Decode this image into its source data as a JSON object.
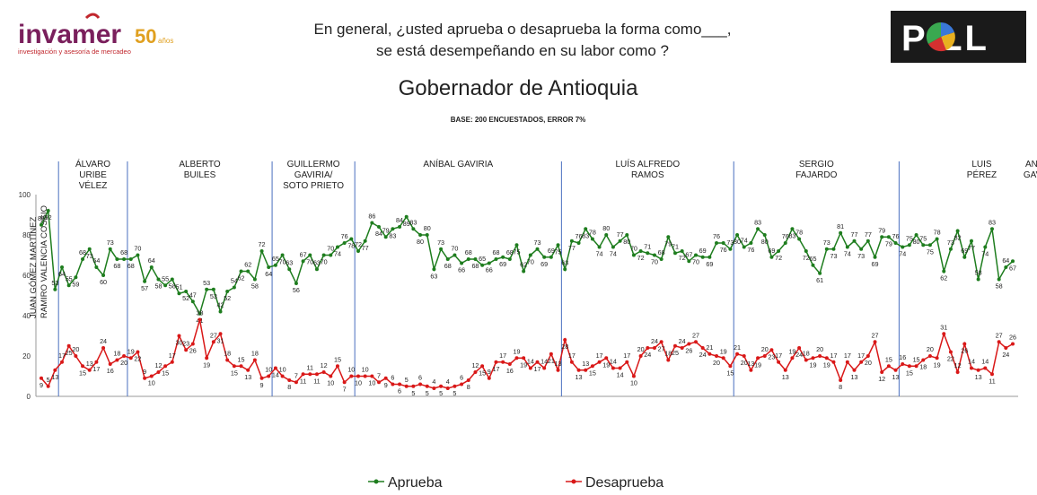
{
  "header": {
    "logo_name": "invamer",
    "logo_years": "50",
    "logo_years_suffix": "años",
    "logo_tagline": "investigación y asesoría de mercadeo",
    "question_line1": "En general, ¿usted aprueba o desaprueba la forma como___,",
    "question_line2": "se está desempeñando en su labor como ?",
    "poll_logo": "P  LL"
  },
  "colors": {
    "aprueba": "#1e7d1e",
    "desaprueba": "#d91818",
    "divider": "#4a6fbf",
    "logo_purple": "#7a1f5c",
    "logo_gold": "#e0a020",
    "logo_red": "#c1272d"
  },
  "chart_data": {
    "type": "line",
    "title": "Gobernador de Antioquia",
    "subtitle": "BASE: 200 ENCUESTADOS, ERROR 7%",
    "ylim": [
      0,
      100
    ],
    "yticks": [
      0,
      20,
      40,
      60,
      80,
      100
    ],
    "grid": false,
    "legend_placement": "bottom-center",
    "periods": [
      {
        "label": [
          "JUAN GÓMEZ MARTÍNEZ"
        ],
        "rotated": true
      },
      {
        "label": [
          "RAMIRO VALENCIA COSSIO"
        ],
        "rotated": true
      },
      {
        "label": [
          "ÁLVARO",
          "URIBE",
          "VÉLEZ"
        ]
      },
      {
        "label": [
          "ALBERTO",
          "BUILES"
        ]
      },
      {
        "label": [
          "GUILLERMO",
          "GAVIRIA/",
          "SOTO PRIETO"
        ]
      },
      {
        "label": [
          "ANÍBAL GAVIRIA"
        ]
      },
      {
        "label": [
          "LUÍS ALFREDO",
          "RAMOS"
        ]
      },
      {
        "label": [
          "SERGIO",
          "FAJARDO"
        ]
      },
      {
        "label": [
          "LUIS",
          "PÉREZ"
        ]
      },
      {
        "label": [
          "ANÍBAL",
          "GAVIRIA"
        ]
      }
    ],
    "divider_after_index": [
      2,
      12,
      33,
      45,
      75,
      100,
      124,
      148
    ],
    "series": [
      {
        "name": "Aprueba",
        "values": [
          85,
          92,
          53,
          64,
          55,
          59,
          68,
          73,
          64,
          60,
          73,
          68,
          68,
          68,
          70,
          57,
          64,
          58,
          55,
          58,
          51,
          52,
          47,
          41,
          53,
          53,
          42,
          52,
          54,
          62,
          62,
          58,
          72,
          64,
          65,
          70,
          63,
          56,
          67,
          70,
          63,
          70,
          70,
          74,
          76,
          78,
          72,
          77,
          86,
          84,
          79,
          83,
          84,
          89,
          83,
          80,
          80,
          63,
          73,
          68,
          70,
          66,
          68,
          68,
          65,
          66,
          68,
          69,
          68,
          75,
          62,
          70,
          73,
          69,
          69,
          75,
          63,
          77,
          76,
          83,
          78,
          74,
          80,
          74,
          77,
          80,
          70,
          72,
          71,
          70,
          68,
          79,
          71,
          72,
          67,
          70,
          69,
          69,
          76,
          76,
          73,
          80,
          74,
          76,
          83,
          80,
          69,
          72,
          76,
          83,
          78,
          72,
          65,
          61,
          73,
          73,
          81,
          74,
          77,
          73,
          77,
          69,
          79,
          79,
          76,
          74,
          75,
          80,
          75,
          75,
          78,
          62,
          73,
          82,
          69,
          77,
          58,
          74,
          83,
          58,
          64,
          67
        ],
        "labels": [
          "85",
          "92",
          "53",
          "64",
          "55",
          "59",
          "68",
          "73",
          "64",
          "60",
          "73",
          "68",
          "68",
          "68",
          "70",
          "57",
          "64",
          "58",
          "55",
          "58",
          "51",
          "52",
          "47",
          "41",
          "53",
          "53",
          "42",
          "52",
          "54",
          "62",
          "62",
          "58",
          "72",
          "64",
          "65",
          "70",
          "63",
          "56",
          "67",
          "70",
          "63",
          "70",
          "70",
          "74",
          "76",
          "78",
          "72",
          "77",
          "86",
          "84",
          "79",
          "83",
          "84",
          "89",
          "83",
          "80",
          "80",
          "63",
          "73",
          "68",
          "70",
          "66",
          "68",
          "68",
          "65",
          "66",
          "68",
          "69",
          "68",
          "75",
          "62",
          "70",
          "73",
          "69",
          "69",
          "75",
          "63",
          "77",
          "76",
          "83",
          "78",
          "74",
          "80",
          "74",
          "77",
          "80",
          "70",
          "72",
          "71",
          "70",
          "68",
          "79",
          "71",
          "72",
          "67",
          "70",
          "69",
          "69",
          "76",
          "76",
          "73",
          "80",
          "74",
          "76",
          "83",
          "80",
          "69",
          "72",
          "76",
          "83",
          "78",
          "72",
          "65",
          "61",
          "73",
          "73",
          "81",
          "74",
          "77",
          "73",
          "77",
          "69",
          "79",
          "79",
          "76",
          "74",
          "75",
          "80",
          "75",
          "75",
          "78",
          "62",
          "73",
          "82",
          "69",
          "77",
          "58",
          "74",
          "83",
          "58",
          "64",
          "67"
        ]
      },
      {
        "name": "Desaprueba",
        "values": [
          9,
          5,
          13,
          17,
          25,
          20,
          15,
          13,
          17,
          24,
          16,
          18,
          20,
          19,
          22,
          9,
          10,
          12,
          15,
          17,
          30,
          23,
          26,
          38,
          19,
          27,
          31,
          18,
          15,
          15,
          13,
          18,
          9,
          10,
          14,
          10,
          8,
          7,
          11,
          11,
          11,
          12,
          10,
          15,
          7,
          10,
          10,
          10,
          10,
          7,
          9,
          6,
          6,
          5,
          5,
          6,
          5,
          4,
          5,
          4,
          5,
          6,
          8,
          12,
          15,
          9,
          17,
          17,
          16,
          19,
          19,
          14,
          17,
          14,
          21,
          13,
          28,
          17,
          13,
          13,
          15,
          17,
          19,
          14,
          14,
          17,
          10,
          20,
          24,
          24,
          27,
          18,
          25,
          24,
          26,
          27,
          24,
          21,
          20,
          19,
          15,
          21,
          20,
          13,
          19,
          20,
          23,
          17,
          13,
          19,
          24,
          18,
          19,
          20,
          19,
          17,
          8,
          17,
          13,
          17,
          20,
          27,
          12,
          15,
          13,
          16,
          15,
          15,
          18,
          20,
          19,
          31,
          22,
          12,
          26,
          14,
          13,
          14,
          11,
          27,
          24,
          26
        ],
        "labels": [
          "9",
          "5",
          "13",
          "17",
          "25",
          "20",
          "15",
          "13",
          "17",
          "24",
          "16",
          "18",
          "20",
          "19",
          "22",
          "9",
          "10",
          "12",
          "15",
          "17",
          "30",
          "23",
          "26",
          "38",
          "19",
          "27",
          "31",
          "18",
          "15",
          "15",
          "13",
          "18",
          "9",
          "10",
          "14",
          "10",
          "8",
          "7",
          "11",
          "11",
          "11",
          "12",
          "10",
          "15",
          "7",
          "10",
          "10",
          "10",
          "10",
          "7",
          "9",
          "6",
          "6",
          "5",
          "5",
          "6",
          "5",
          "4",
          "5",
          "4",
          "5",
          "6",
          "8",
          "12",
          "15",
          "9",
          "17",
          "17",
          "16",
          "19",
          "19",
          "14",
          "17",
          "14",
          "21",
          "13",
          "28",
          "17",
          "13",
          "13",
          "15",
          "17",
          "19",
          "14",
          "14",
          "17",
          "10",
          "20",
          "24",
          "24",
          "27",
          "18",
          "25",
          "24",
          "26",
          "27",
          "24",
          "21",
          "20",
          "19",
          "15",
          "21",
          "20",
          "13",
          "19",
          "20",
          "23",
          "17",
          "13",
          "19",
          "24",
          "18",
          "19",
          "20",
          "19",
          "17",
          "8",
          "17",
          "13",
          "17",
          "20",
          "27",
          "12",
          "15",
          "13",
          "16",
          "15",
          "15",
          "18",
          "20",
          "19",
          "31",
          "22",
          "12",
          "26",
          "14",
          "13",
          "14",
          "11",
          "27",
          "24",
          "26"
        ]
      }
    ]
  }
}
